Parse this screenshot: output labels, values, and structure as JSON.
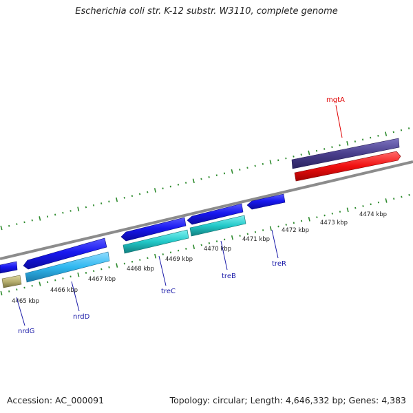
{
  "title": "Escherichia coli str. K-12 substr. W3110, complete genome",
  "footer": {
    "accession": "Accession: AC_000091",
    "topology": "Topology: circular; Length: 4,646,332 bp; Genes: 4,383"
  },
  "scale_labels": [
    "4465 kbp",
    "4466 kbp",
    "4467 kbp",
    "4468 kbp",
    "4469 kbp",
    "4470 kbp",
    "4471 kbp",
    "4472 kbp",
    "4473 kbp",
    "4474 kbp"
  ],
  "gene_labels": {
    "nrdG": "nrdG",
    "nrdD": "nrdD",
    "treC": "treC",
    "treB": "treB",
    "treR": "treR",
    "mgtA": "mgtA"
  },
  "colors": {
    "backbone": "#8c8c8c",
    "tick": "#2e8b2e",
    "gene_label": "#1a1aa8",
    "highlight_label": "#e00000",
    "blue_gene": "#1010e8",
    "cyan_gene": "#20c8c8",
    "light_blue_gene": "#30b8f0",
    "olive_gene": "#b8b070",
    "purple_gene": "#4a3f8c",
    "red_gene": "#f01010"
  }
}
